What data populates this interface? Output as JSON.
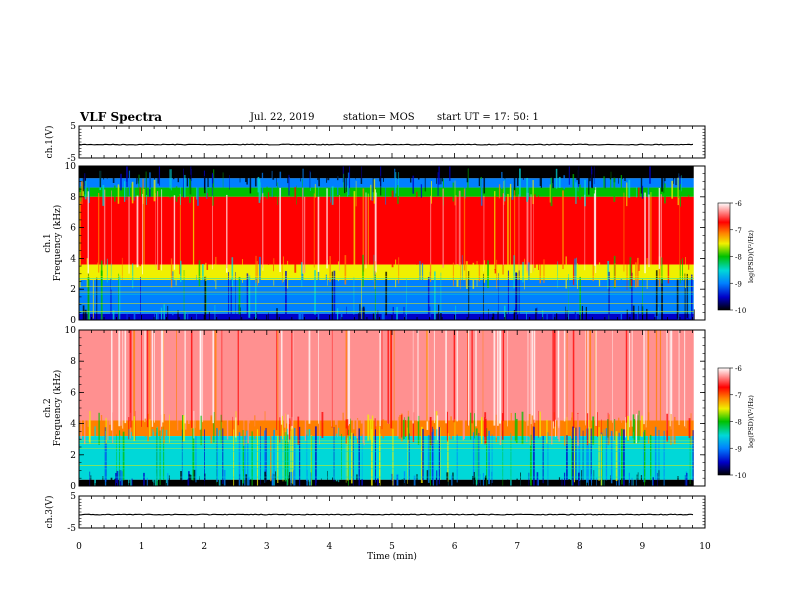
{
  "header": {
    "title": "VLF Spectra",
    "date": "Jul. 22, 2019",
    "station": "station= MOS",
    "start": "start UT = 17: 50: 1"
  },
  "chart_data": [
    {
      "type": "line",
      "panel": "ch1-waveform",
      "ylabel": "ch.1(V)",
      "yticks": [
        "5",
        "-5"
      ],
      "ylim": [
        -5,
        5
      ],
      "x": [
        0,
        9.82
      ],
      "y_level": -0.8,
      "xlim": [
        0,
        10
      ]
    },
    {
      "type": "heatmap",
      "panel": "ch1-spectrogram",
      "ylabel": "ch.1 Frequency (kHz)",
      "yticks": [
        "0",
        "2",
        "4",
        "6",
        "8",
        "10"
      ],
      "ylim": [
        0,
        10
      ],
      "xlim": [
        0,
        10
      ],
      "x_end": 9.82,
      "colorbar": {
        "label": "log(PSD)(V²/Hz)",
        "ticks": [
          "-6",
          "-7",
          "-8",
          "-9",
          "-10"
        ],
        "range": [
          -10,
          -6
        ]
      },
      "bands_khz": [
        {
          "from": 9.2,
          "to": 10,
          "log_psd": -10.5
        },
        {
          "from": 8.6,
          "to": 9.2,
          "log_psd": -9.2
        },
        {
          "from": 8.0,
          "to": 8.6,
          "log_psd": -8.3
        },
        {
          "from": 3.6,
          "to": 8.0,
          "log_psd": -6.8
        },
        {
          "from": 2.6,
          "to": 3.6,
          "log_psd": -8.0
        },
        {
          "from": 0.4,
          "to": 2.6,
          "log_psd": -9.0
        },
        {
          "from": 0,
          "to": 0.4,
          "log_psd": -9.6
        }
      ]
    },
    {
      "type": "heatmap",
      "panel": "ch2-spectrogram",
      "ylabel": "ch.2 Frequency (kHz)",
      "yticks": [
        "0",
        "2",
        "4",
        "6",
        "8",
        "10"
      ],
      "ylim": [
        0,
        10
      ],
      "xlim": [
        0,
        10
      ],
      "x_end": 9.82,
      "colorbar": {
        "label": "log(PSD)(V²/Hz)",
        "ticks": [
          "-6",
          "-7",
          "-8",
          "-9",
          "-10"
        ],
        "range": [
          -10,
          -6
        ]
      },
      "bands_khz": [
        {
          "from": 4.2,
          "to": 10,
          "log_psd": -6.3
        },
        {
          "from": 3.2,
          "to": 4.2,
          "log_psd": -7.2
        },
        {
          "from": 0.4,
          "to": 3.2,
          "log_psd": -8.6
        },
        {
          "from": 0,
          "to": 0.4,
          "log_psd": -9.8
        }
      ]
    },
    {
      "type": "line",
      "panel": "ch3-waveform",
      "ylabel": "ch.3(V)",
      "yticks": [
        "5",
        "-5"
      ],
      "ylim": [
        -5,
        5
      ],
      "x": [
        0,
        9.82
      ],
      "y_level": -0.8,
      "xlim": [
        0,
        10
      ]
    }
  ],
  "xaxis": {
    "label": "Time (min)",
    "ticks": [
      "0",
      "1",
      "2",
      "3",
      "4",
      "5",
      "6",
      "7",
      "8",
      "9",
      "10"
    ]
  },
  "colormap": [
    "#000000",
    "#0000c8",
    "#0080ff",
    "#00d8d8",
    "#00c000",
    "#f0f000",
    "#ff8000",
    "#ff0000",
    "#ff9090",
    "#ffffff"
  ]
}
